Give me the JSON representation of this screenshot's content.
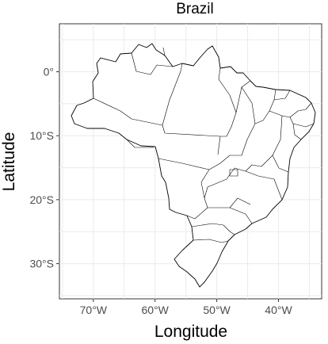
{
  "chart_data": {
    "type": "map",
    "title": "Brazil",
    "xlabel": "Longitude",
    "ylabel": "Latitude",
    "xlim": [
      -75.5,
      -33.0
    ],
    "ylim": [
      -35.5,
      7.5
    ],
    "x_ticks": [
      {
        "value": -70,
        "label": "70°W"
      },
      {
        "value": -60,
        "label": "60°W"
      },
      {
        "value": -50,
        "label": "50°W"
      },
      {
        "value": -40,
        "label": "40°W"
      }
    ],
    "y_ticks": [
      {
        "value": 0,
        "label": "0°"
      },
      {
        "value": -10,
        "label": "10°S"
      },
      {
        "value": -20,
        "label": "20°S"
      },
      {
        "value": -30,
        "label": "30°S"
      }
    ],
    "grid": true,
    "theme": "bw",
    "colors": {
      "fill": "#ffffff",
      "stroke": "#000000",
      "grid": "#ebebeb",
      "tick_text": "#4d4d4d"
    }
  }
}
